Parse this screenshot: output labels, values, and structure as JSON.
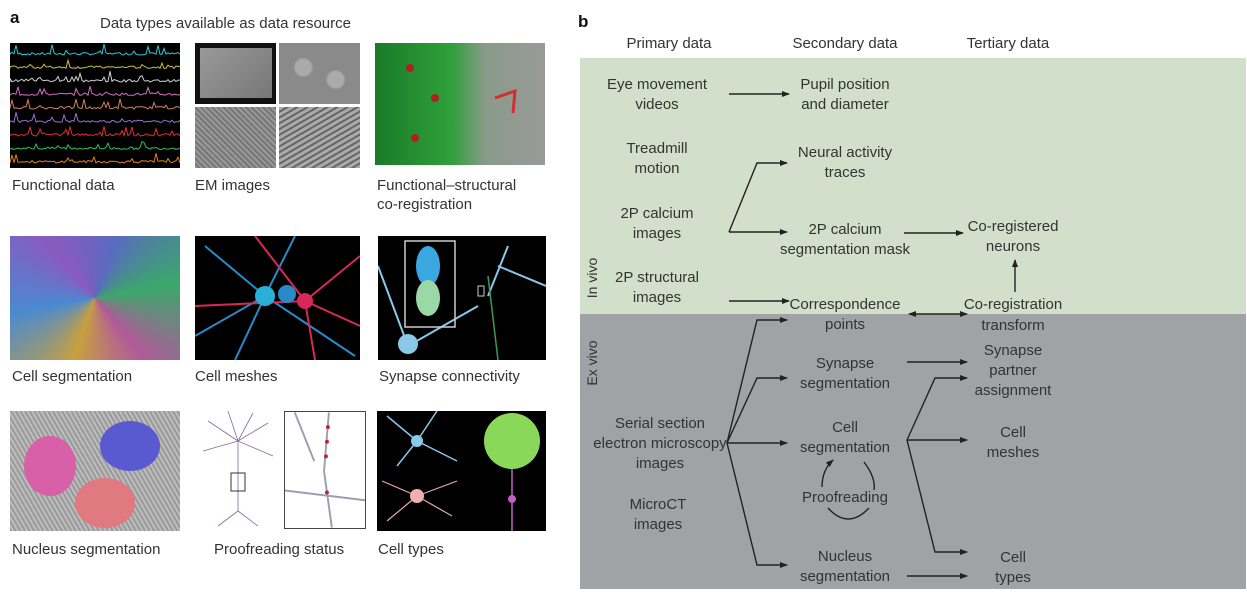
{
  "panel_a": {
    "letter": "a",
    "title": "Data types available as data resource",
    "tiles": [
      {
        "caption": [
          "Functional data"
        ],
        "image": "functional-traces"
      },
      {
        "caption": [
          "EM images"
        ],
        "image": "em-images"
      },
      {
        "caption": [
          "Functional–structural",
          "co-registration"
        ],
        "image": "co-registration"
      },
      {
        "caption": [
          "Cell segmentation"
        ],
        "image": "cell-segmentation"
      },
      {
        "caption": [
          "Cell meshes"
        ],
        "image": "cell-meshes"
      },
      {
        "caption": [
          "Synapse connectivity"
        ],
        "image": "synapse-connectivity"
      },
      {
        "caption": [
          "Nucleus segmentation"
        ],
        "image": "nucleus-segmentation"
      },
      {
        "caption": [
          "Proofreading status"
        ],
        "image": "proofreading-status"
      },
      {
        "caption": [
          "Cell types"
        ],
        "image": "cell-types"
      }
    ]
  },
  "panel_b": {
    "letter": "b",
    "headers": {
      "primary": "Primary data",
      "secondary": "Secondary data",
      "tertiary": "Tertiary data"
    },
    "regions": {
      "in_vivo": "In vivo",
      "ex_vivo": "Ex vivo"
    },
    "colors": {
      "in_vivo": "#d2dfca",
      "ex_vivo": "#a0a2a5"
    },
    "primary": {
      "eye": [
        "Eye movement",
        "videos"
      ],
      "treadmill": [
        "Treadmill",
        "motion"
      ],
      "calcium": [
        "2P calcium",
        "images"
      ],
      "structural": [
        "2P structural",
        "images"
      ],
      "serial": [
        "Serial section",
        "electron microscopy",
        "images"
      ],
      "microct": [
        "MicroCT",
        "images"
      ]
    },
    "secondary": {
      "pupil": [
        "Pupil position",
        "and diameter"
      ],
      "neural": [
        "Neural activity",
        "traces"
      ],
      "mask": [
        "2P calcium",
        "segmentation mask"
      ],
      "correspondence": [
        "Correspondence",
        "points"
      ],
      "synapse": [
        "Synapse",
        "segmentation"
      ],
      "cellseg": [
        "Cell",
        "segmentation"
      ],
      "proofreading": "Proofreading",
      "nucleus": [
        "Nucleus",
        "segmentation"
      ]
    },
    "tertiary": {
      "coregistered": [
        "Co-registered",
        "neurons"
      ],
      "transform": [
        "Co-registration",
        "transform"
      ],
      "partner": [
        "Synapse",
        "partner",
        "assignment"
      ],
      "meshes": [
        "Cell",
        "meshes"
      ],
      "types": [
        "Cell",
        "types"
      ]
    }
  }
}
